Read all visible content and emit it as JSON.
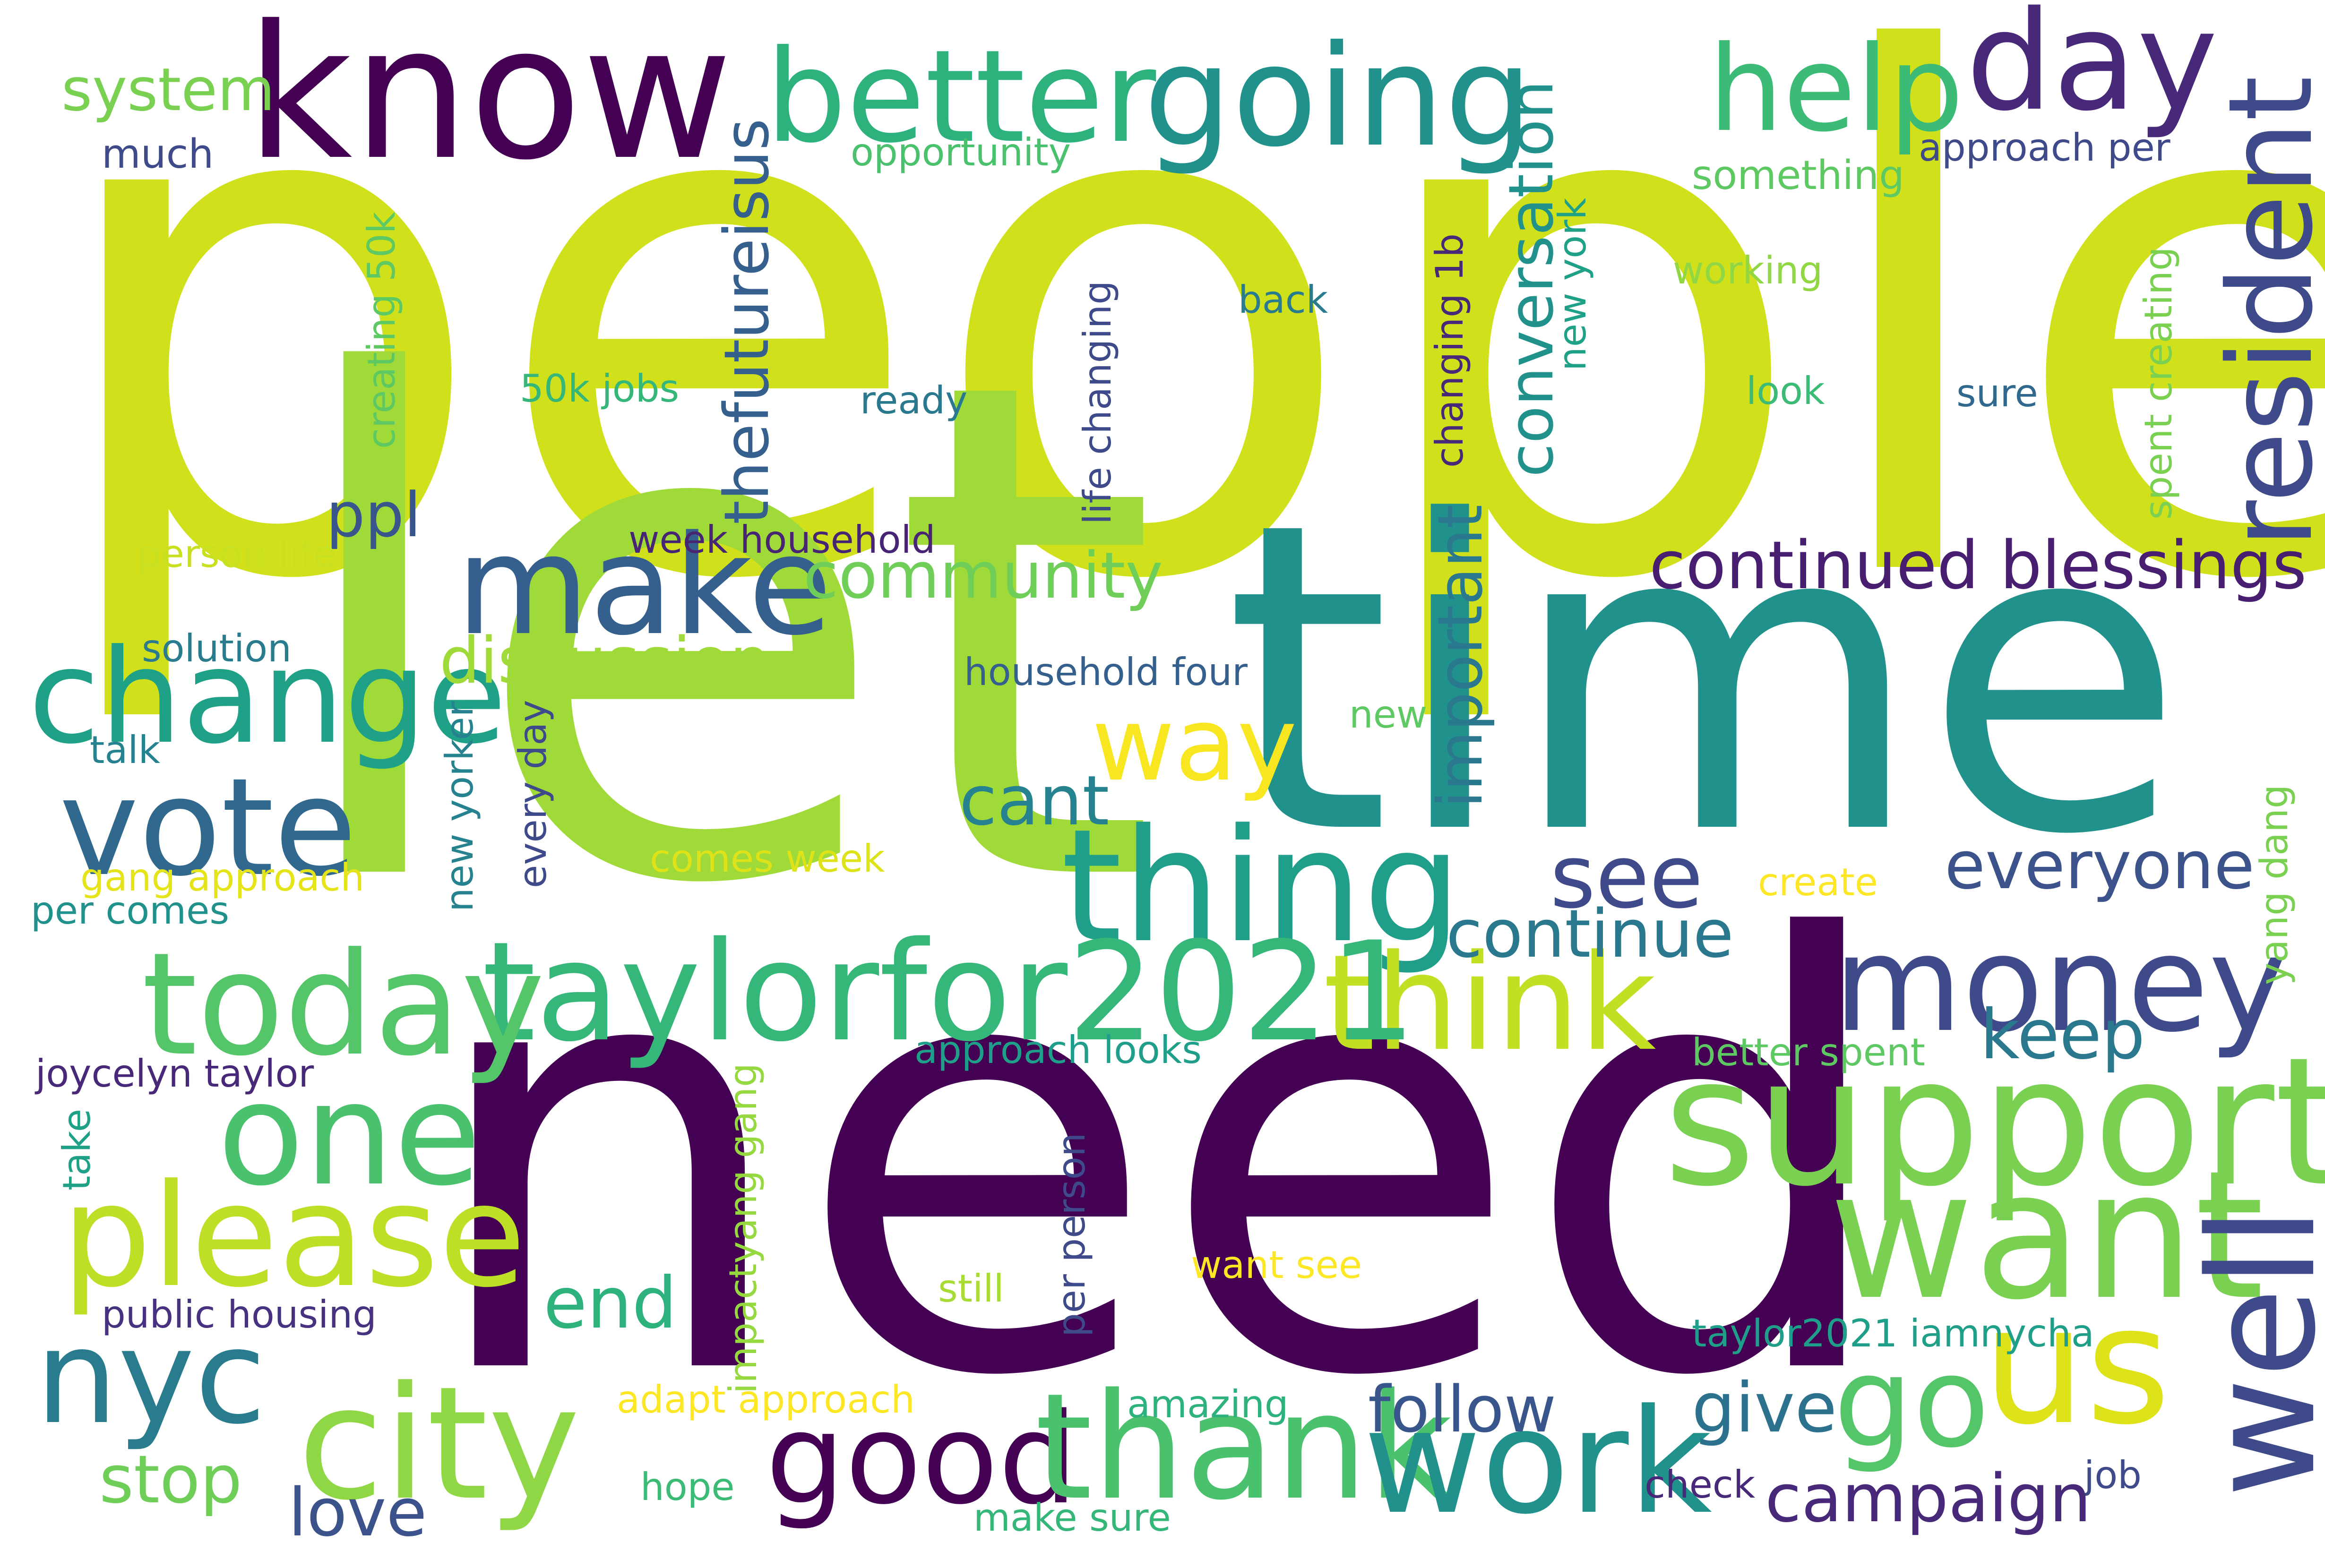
{
  "background": "#ffffff",
  "words": [
    {
      "text": "people",
      "color": "#d0e11c"
    },
    {
      "text": "let",
      "color": "#a0da39"
    },
    {
      "text": "time",
      "color": "#21918c"
    },
    {
      "text": "need",
      "color": "#440154"
    },
    {
      "text": "know",
      "color": "#440154"
    },
    {
      "text": "going",
      "color": "#21918c"
    },
    {
      "text": "better",
      "color": "#2db27d"
    },
    {
      "text": "help",
      "color": "#3bbb75"
    },
    {
      "text": "day",
      "color": "#482878"
    },
    {
      "text": "resident",
      "color": "#3e4a89"
    },
    {
      "text": "support",
      "color": "#7ad151"
    },
    {
      "text": "want",
      "color": "#7ad151"
    },
    {
      "text": "us",
      "color": "#dde318"
    },
    {
      "text": "well",
      "color": "#3e4a89"
    },
    {
      "text": "money",
      "color": "#3e4a89"
    },
    {
      "text": "thing",
      "color": "#1f9e89"
    },
    {
      "text": "think",
      "color": "#c2df23"
    },
    {
      "text": "taylorfor2021",
      "color": "#35b779"
    },
    {
      "text": "today",
      "color": "#54c568"
    },
    {
      "text": "make",
      "color": "#355f8d"
    },
    {
      "text": "change",
      "color": "#1fa187"
    },
    {
      "text": "vote",
      "color": "#31688e"
    },
    {
      "text": "one",
      "color": "#4ac16d"
    },
    {
      "text": "please",
      "color": "#bddf26"
    },
    {
      "text": "nyc",
      "color": "#287c8e"
    },
    {
      "text": "city",
      "color": "#8fd744"
    },
    {
      "text": "good",
      "color": "#440154"
    },
    {
      "text": "thank",
      "color": "#4ac16d"
    },
    {
      "text": "work",
      "color": "#21918c"
    },
    {
      "text": "go",
      "color": "#54c568"
    },
    {
      "text": "way",
      "color": "#f8e621"
    },
    {
      "text": "see",
      "color": "#3e4a89"
    },
    {
      "text": "everyone",
      "color": "#3b528b"
    },
    {
      "text": "continue",
      "color": "#2a788e"
    },
    {
      "text": "keep",
      "color": "#2a788e"
    },
    {
      "text": "cant",
      "color": "#26828e"
    },
    {
      "text": "continued blessings",
      "color": "#481f70"
    },
    {
      "text": "community",
      "color": "#6ece58"
    },
    {
      "text": "discussion",
      "color": "#a0da39"
    },
    {
      "text": "ppl",
      "color": "#39568c"
    },
    {
      "text": "system",
      "color": "#7ad151"
    },
    {
      "text": "much",
      "color": "#3e4a89"
    },
    {
      "text": "opportunity",
      "color": "#4ac16d"
    },
    {
      "text": "something",
      "color": "#5ec962"
    },
    {
      "text": "approach per",
      "color": "#3e4a89"
    },
    {
      "text": "back",
      "color": "#287c8e"
    },
    {
      "text": "working",
      "color": "#90d743"
    },
    {
      "text": "look",
      "color": "#3bbb75"
    },
    {
      "text": "sure",
      "color": "#31688e"
    },
    {
      "text": "50k jobs",
      "color": "#35b779"
    },
    {
      "text": "ready",
      "color": "#2a788e"
    },
    {
      "text": "week household",
      "color": "#482475"
    },
    {
      "text": "person life",
      "color": "#c8e020"
    },
    {
      "text": "solution",
      "color": "#287c8e"
    },
    {
      "text": "household four",
      "color": "#355f8d"
    },
    {
      "text": "new",
      "color": "#5ec962"
    },
    {
      "text": "talk",
      "color": "#26828e"
    },
    {
      "text": "comes week",
      "color": "#dde318"
    },
    {
      "text": "gang approach",
      "color": "#e5e419"
    },
    {
      "text": "per comes",
      "color": "#21918c"
    },
    {
      "text": "create",
      "color": "#fde725"
    },
    {
      "text": "approach looks",
      "color": "#1f9e89"
    },
    {
      "text": "better spent",
      "color": "#5ec962"
    },
    {
      "text": "joycelyn taylor",
      "color": "#482878"
    },
    {
      "text": "public housing",
      "color": "#46327e"
    },
    {
      "text": "still",
      "color": "#a8db34"
    },
    {
      "text": "want see",
      "color": "#fde725"
    },
    {
      "text": "taylor2021 iamnycha",
      "color": "#1f9e89"
    },
    {
      "text": "adapt approach",
      "color": "#fde725"
    },
    {
      "text": "amazing",
      "color": "#2db27d"
    },
    {
      "text": "hope",
      "color": "#3bbb75"
    },
    {
      "text": "make sure",
      "color": "#35b779"
    },
    {
      "text": "check",
      "color": "#482878"
    },
    {
      "text": "job",
      "color": "#3e4a89"
    },
    {
      "text": "stop",
      "color": "#6ece58"
    },
    {
      "text": "love",
      "color": "#3b528b"
    },
    {
      "text": "end",
      "color": "#2db27d"
    },
    {
      "text": "follow",
      "color": "#39568c"
    },
    {
      "text": "give",
      "color": "#2c728e"
    },
    {
      "text": "campaign",
      "color": "#482878"
    },
    {
      "text": "take",
      "color": "#1fa187"
    },
    {
      "text": "thefutureisus",
      "color": "#355f8d"
    },
    {
      "text": "conversation",
      "color": "#21918c"
    },
    {
      "text": "important",
      "color": "#2a788e"
    },
    {
      "text": "creating 50k",
      "color": "#5ec962"
    },
    {
      "text": "life changing",
      "color": "#3e4a89"
    },
    {
      "text": "changing 1b",
      "color": "#482878"
    },
    {
      "text": "new york",
      "color": "#1fa187"
    },
    {
      "text": "spent creating",
      "color": "#7ad151"
    },
    {
      "text": "every day",
      "color": "#3e4a89"
    },
    {
      "text": "new yorker",
      "color": "#26828e"
    },
    {
      "text": "impactyang gang",
      "color": "#95d840"
    },
    {
      "text": "per person",
      "color": "#3e4a89"
    },
    {
      "text": "yang dang",
      "color": "#7ad151"
    }
  ]
}
